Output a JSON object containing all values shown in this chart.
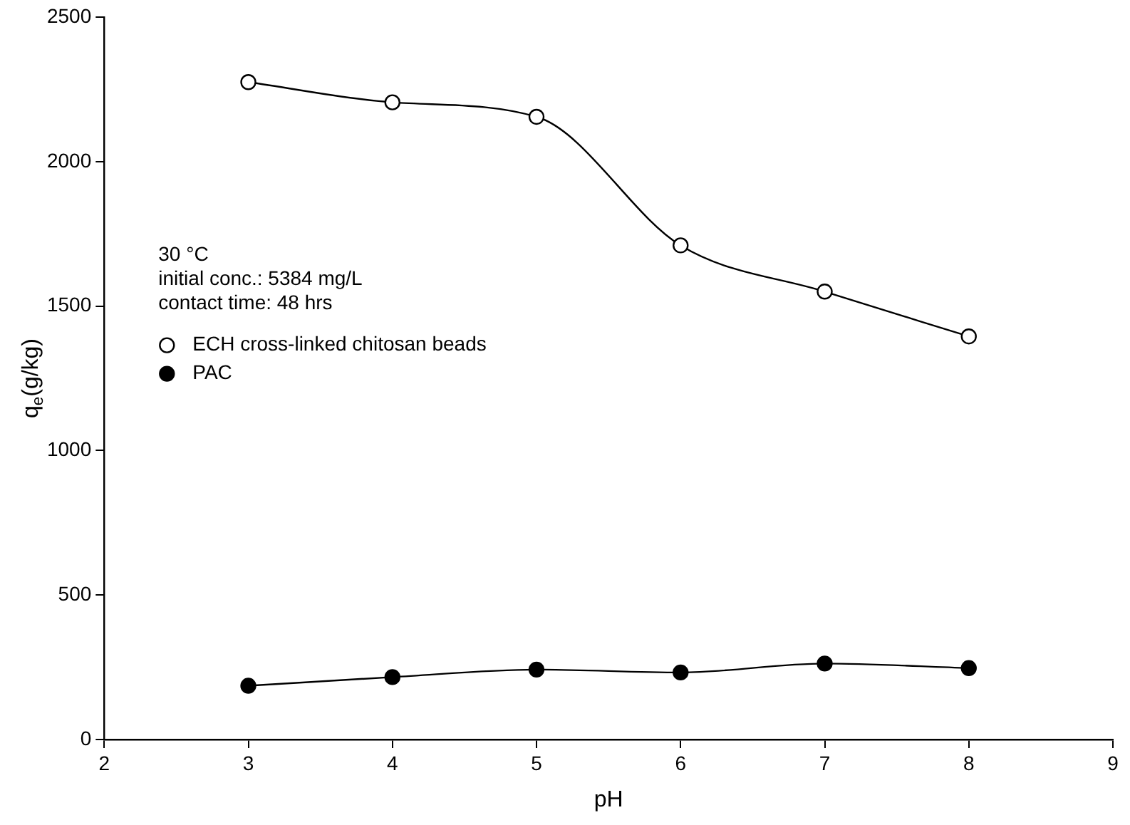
{
  "chart_data": {
    "type": "line",
    "xlabel": "pH",
    "ylabel": "q$_{e}$(g/kg)",
    "x": [
      3,
      4,
      5,
      6,
      7,
      8
    ],
    "series": [
      {
        "name": "ECH cross-linked chitosan beads",
        "color": "#000000",
        "colors": [
          "#ffffff",
          "#ffffff",
          "#ffffff",
          "#ffffff",
          "#ffffff",
          "#ffffff"
        ],
        "values": [
          2275,
          2205,
          2155,
          1710,
          1550,
          1395
        ]
      },
      {
        "name": "PAC",
        "color": "#000000",
        "values": [
          186,
          216,
          242,
          232,
          263,
          247
        ]
      }
    ],
    "xlim": [
      2,
      9
    ],
    "xticks": [
      2,
      3,
      4,
      5,
      6,
      7,
      8,
      9
    ],
    "ylim": [
      0,
      2500
    ],
    "yticks": [
      0,
      500,
      1000,
      1500,
      2000,
      2500
    ],
    "grid": false,
    "legend": "left",
    "marker": "circle",
    "line_style": "solid",
    "annotations": [
      "30 °C",
      "initial conc.: 5384 mg/L",
      "contact time: 48 hrs"
    ]
  }
}
